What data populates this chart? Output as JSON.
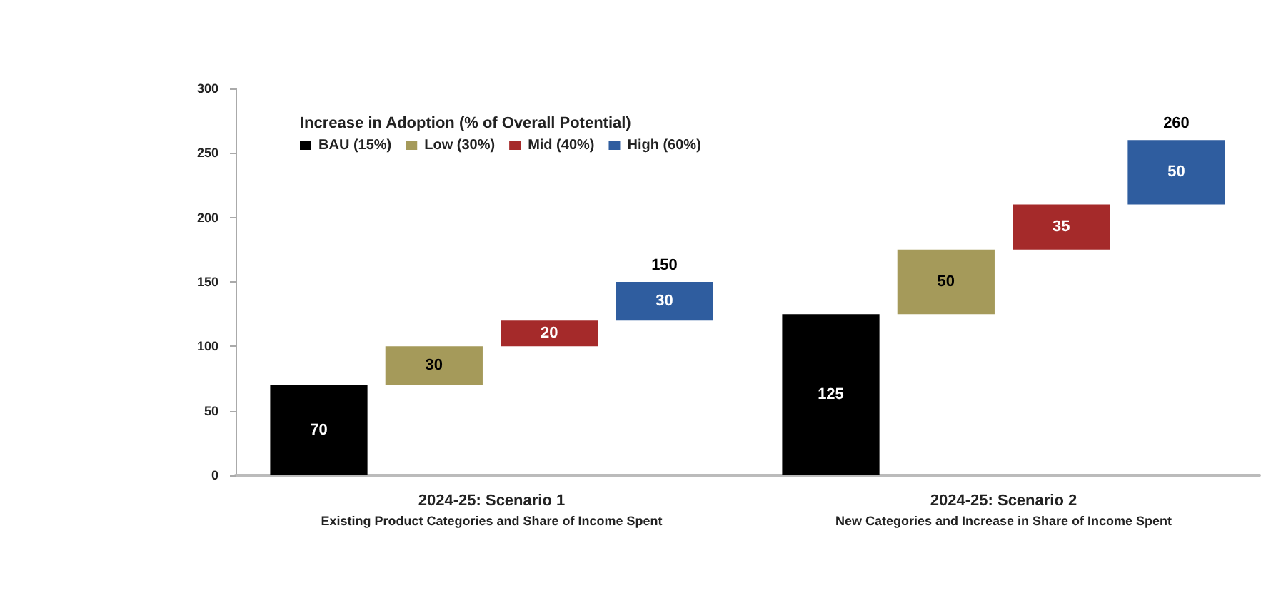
{
  "chart_data": {
    "type": "bar",
    "legend_title": "Increase in Adoption (% of Overall Potential)",
    "categories": [
      "2024-25: Scenario 1\nExisting Product Categories and Share of Income Spent",
      "2024-25: Scenario 2\nNew Categories and Increase in Share of Income Spent"
    ],
    "series": [
      {
        "name": "BAU (15%)",
        "color": "#000000",
        "values": [
          70,
          125
        ],
        "base": [
          0,
          0
        ]
      },
      {
        "name": "Low (30%)",
        "color": "#a59a5a",
        "values": [
          30,
          50
        ],
        "base": [
          70,
          125
        ]
      },
      {
        "name": "Mid (40%)",
        "color": "#a52a2a",
        "values": [
          20,
          35
        ],
        "base": [
          100,
          175
        ]
      },
      {
        "name": "High (60%)",
        "color": "#2f5d9f",
        "values": [
          30,
          50
        ],
        "base": [
          120,
          210
        ]
      }
    ],
    "totals": [
      "150",
      "260"
    ],
    "ylim": [
      0,
      300
    ],
    "yticks": [
      0,
      50,
      100,
      150,
      200,
      250,
      300
    ],
    "data_labels": true,
    "grid": false,
    "legend": "top left"
  }
}
